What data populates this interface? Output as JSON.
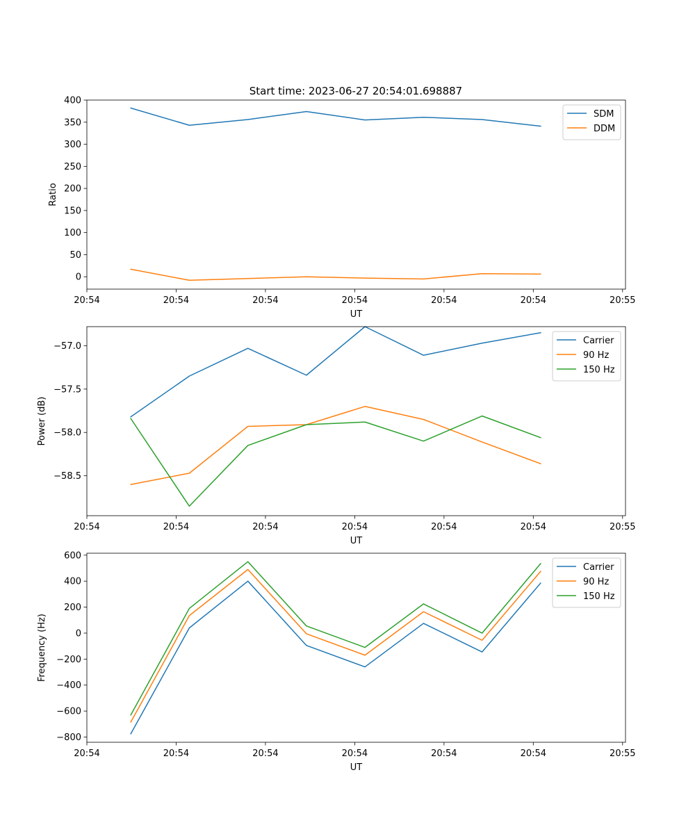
{
  "figure": {
    "title": "Start time: 2023-06-27 20:54:01.698887"
  },
  "chart_data": [
    {
      "type": "line",
      "title": "Start time: 2023-06-27 20:54:01.698887",
      "xlabel": "UT",
      "ylabel": "Ratio",
      "x": [
        0,
        1,
        2,
        3,
        4,
        5,
        6,
        7
      ],
      "xlim": [
        -0.75,
        8.45
      ],
      "xticks": [
        -0.75,
        0.775,
        2.3,
        3.825,
        5.35,
        6.875,
        8.4
      ],
      "xticklabels": [
        "20:54",
        "20:54",
        "20:54",
        "20:54",
        "20:54",
        "20:54",
        "20:55"
      ],
      "ylim": [
        -28,
        400
      ],
      "yticks": [
        0,
        50,
        100,
        150,
        200,
        250,
        300,
        350,
        400
      ],
      "yticklabels": [
        "0",
        "50",
        "100",
        "150",
        "200",
        "250",
        "300",
        "350",
        "400"
      ],
      "legend": "top-right",
      "grid": false,
      "series": [
        {
          "name": "SDM",
          "color": "#1f77b4",
          "values": [
            382,
            343,
            356,
            374,
            355,
            361,
            356,
            341
          ]
        },
        {
          "name": "DDM",
          "color": "#ff7f0e",
          "values": [
            17,
            -8,
            -4,
            0,
            -3,
            -5,
            7,
            6
          ]
        }
      ]
    },
    {
      "type": "line",
      "xlabel": "UT",
      "ylabel": "Power (dB)",
      "x": [
        0,
        1,
        2,
        3,
        4,
        5,
        6,
        7
      ],
      "xlim": [
        -0.75,
        8.45
      ],
      "xticks": [
        -0.75,
        0.775,
        2.3,
        3.825,
        5.35,
        6.875,
        8.4
      ],
      "xticklabels": [
        "20:54",
        "20:54",
        "20:54",
        "20:54",
        "20:54",
        "20:54",
        "20:55"
      ],
      "ylim": [
        -58.96,
        -56.78
      ],
      "yticks": [
        -58.5,
        -58.0,
        -57.5,
        -57.0
      ],
      "yticklabels": [
        "−58.5",
        "−58.0",
        "−57.5",
        "−57.0"
      ],
      "legend": "top-right",
      "grid": false,
      "series": [
        {
          "name": "Carrier",
          "color": "#1f77b4",
          "values": [
            -57.82,
            -57.35,
            -57.03,
            -57.34,
            -56.78,
            -57.11,
            -56.97,
            -56.85
          ]
        },
        {
          "name": "90 Hz",
          "color": "#ff7f0e",
          "values": [
            -58.6,
            -58.47,
            -57.93,
            -57.91,
            -57.7,
            -57.85,
            -58.11,
            -58.36
          ]
        },
        {
          "name": "150 Hz",
          "color": "#2ca02c",
          "values": [
            -57.84,
            -58.85,
            -58.15,
            -57.91,
            -57.88,
            -58.1,
            -57.81,
            -58.06
          ]
        }
      ]
    },
    {
      "type": "line",
      "xlabel": "UT",
      "ylabel": "Frequency (Hz)",
      "x": [
        0,
        1,
        2,
        3,
        4,
        5,
        6,
        7
      ],
      "xlim": [
        -0.75,
        8.45
      ],
      "xticks": [
        -0.75,
        0.775,
        2.3,
        3.825,
        5.35,
        6.875,
        8.4
      ],
      "xticklabels": [
        "20:54",
        "20:54",
        "20:54",
        "20:54",
        "20:54",
        "20:54",
        "20:55"
      ],
      "ylim": [
        -840,
        615
      ],
      "yticks": [
        -800,
        -600,
        -400,
        -200,
        0,
        200,
        400,
        600
      ],
      "yticklabels": [
        "−800",
        "−600",
        "−400",
        "−200",
        "0",
        "200",
        "400",
        "600"
      ],
      "legend": "top-right",
      "grid": false,
      "series": [
        {
          "name": "Carrier",
          "color": "#1f77b4",
          "values": [
            -775,
            40,
            400,
            -95,
            -260,
            75,
            -145,
            385
          ]
        },
        {
          "name": "90 Hz",
          "color": "#ff7f0e",
          "values": [
            -685,
            135,
            490,
            -5,
            -170,
            165,
            -55,
            475
          ]
        },
        {
          "name": "150 Hz",
          "color": "#2ca02c",
          "values": [
            -630,
            190,
            550,
            55,
            -110,
            225,
            0,
            535
          ]
        }
      ]
    }
  ]
}
